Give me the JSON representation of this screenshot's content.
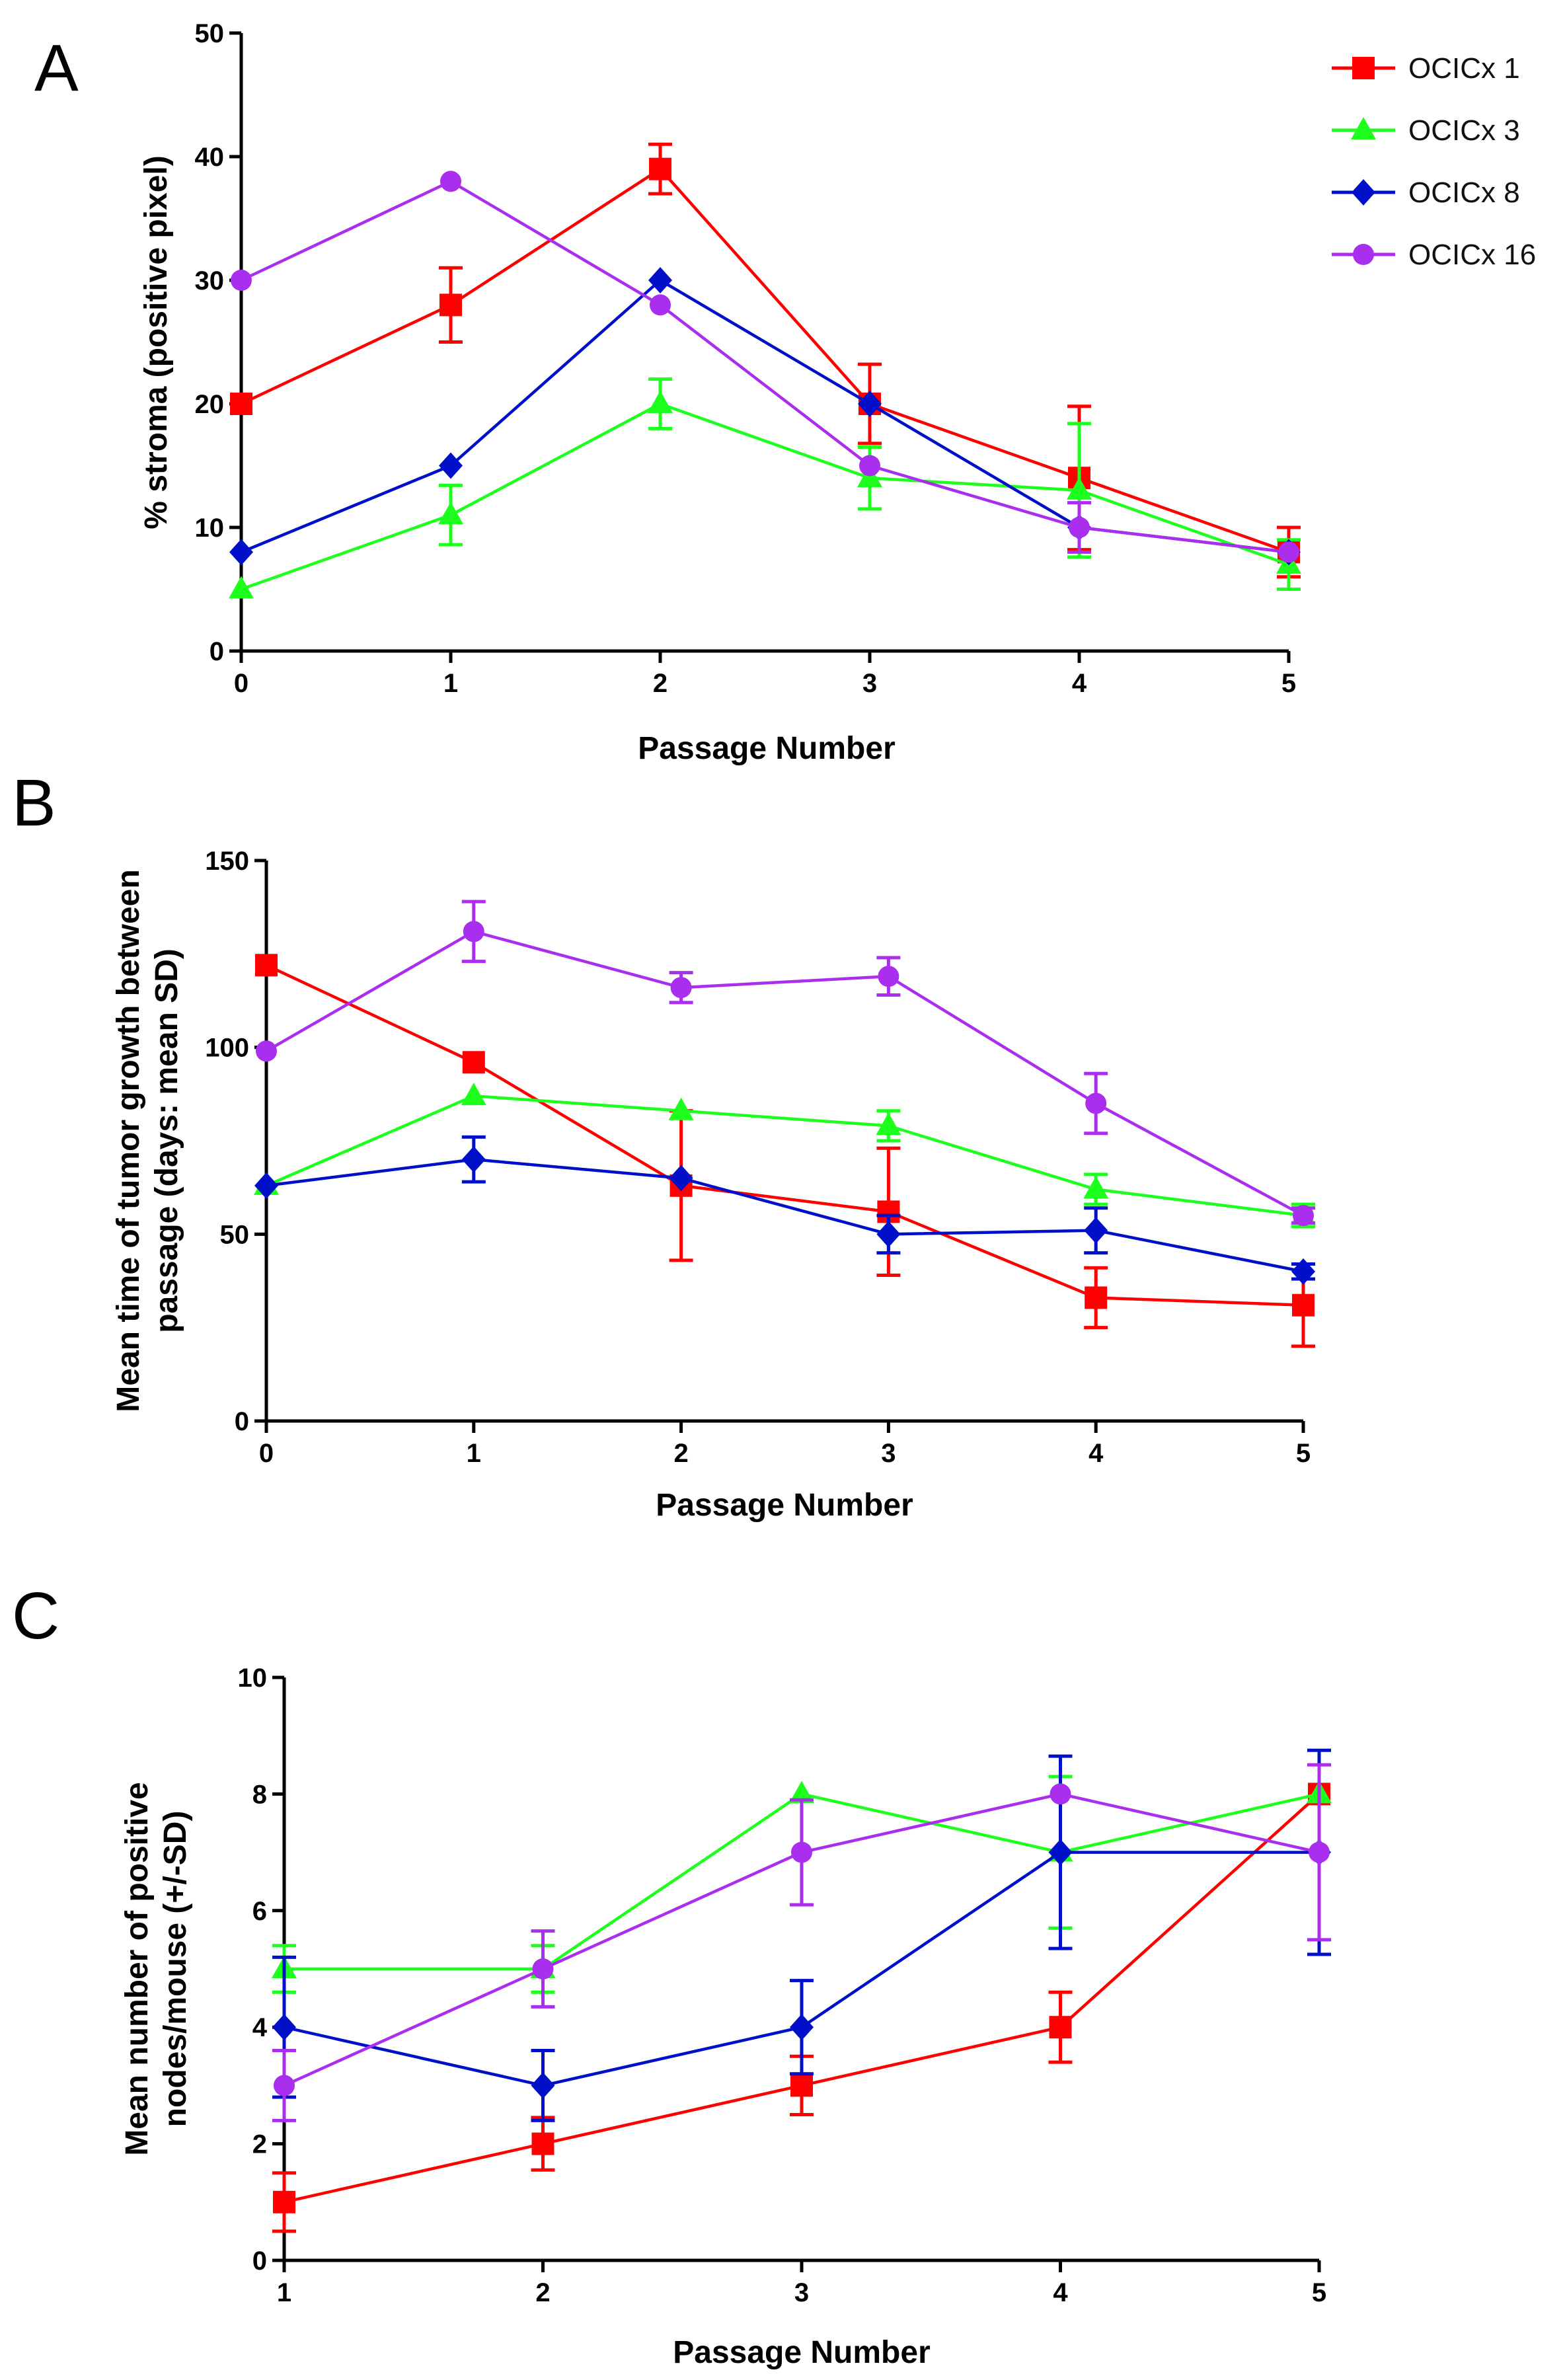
{
  "colors": {
    "OCICx 1": "#ff0000",
    "OCICx 3": "#1dff1d",
    "OCICx 8": "#0010c8",
    "OCICx 16": "#aa2eee"
  },
  "legend": [
    "OCICx 1",
    "OCICx 3",
    "OCICx 8",
    "OCICx 16"
  ],
  "chart_data": [
    {
      "panel": "A",
      "type": "line",
      "xlabel": "Passage Number",
      "ylabel": "% stroma (positive pixel)",
      "x": [
        0,
        1,
        2,
        3,
        4,
        5
      ],
      "xlim": [
        0,
        5
      ],
      "ylim": [
        0,
        50
      ],
      "yticks": [
        0,
        10,
        20,
        30,
        40,
        50
      ],
      "series": [
        {
          "name": "OCICx 1",
          "marker": "square",
          "values": [
            20,
            28,
            39,
            20,
            14,
            8
          ],
          "err": [
            0,
            3,
            2,
            3.2,
            5.8,
            2
          ]
        },
        {
          "name": "OCICx 3",
          "marker": "triangle",
          "values": [
            5,
            11,
            20,
            14,
            13,
            7
          ],
          "err": [
            0,
            2.4,
            2,
            2.5,
            5.4,
            2
          ]
        },
        {
          "name": "OCICx 8",
          "marker": "diamond",
          "values": [
            8,
            15,
            30,
            20,
            10,
            8
          ],
          "err": [
            0,
            0,
            0,
            0,
            0,
            0
          ]
        },
        {
          "name": "OCICx 16",
          "marker": "circle",
          "values": [
            30,
            38,
            28,
            15,
            10,
            8
          ],
          "err": [
            0,
            0,
            0,
            0,
            2,
            0
          ]
        }
      ]
    },
    {
      "panel": "B",
      "type": "line",
      "xlabel": "Passage Number",
      "ylabel": "Mean time of tumor growth between passage (days: mean SD)",
      "ylabel_lines": [
        "Mean time of tumor growth between",
        "passage (days: mean SD)"
      ],
      "x": [
        0,
        1,
        2,
        3,
        4,
        5
      ],
      "xlim": [
        0,
        5
      ],
      "ylim": [
        0,
        150
      ],
      "yticks": [
        0,
        50,
        100,
        150
      ],
      "series": [
        {
          "name": "OCICx 1",
          "marker": "square",
          "values": [
            122,
            96,
            63,
            56,
            33,
            31
          ],
          "err": [
            0,
            0,
            20,
            17,
            8,
            11
          ]
        },
        {
          "name": "OCICx 3",
          "marker": "triangle",
          "values": [
            63,
            87,
            83,
            79,
            62,
            55
          ],
          "err": [
            0,
            0,
            0,
            4,
            4,
            3
          ]
        },
        {
          "name": "OCICx 8",
          "marker": "diamond",
          "values": [
            63,
            70,
            65,
            50,
            51,
            40
          ],
          "err": [
            0,
            6,
            0,
            5,
            6,
            2
          ]
        },
        {
          "name": "OCICx 16",
          "marker": "circle",
          "values": [
            99,
            131,
            116,
            119,
            85,
            55
          ],
          "err": [
            0,
            8,
            4,
            5,
            8,
            2
          ]
        }
      ]
    },
    {
      "panel": "C",
      "type": "line",
      "xlabel": "Passage Number",
      "ylabel": "Mean number of positive nodes/mouse (+/-SD)",
      "ylabel_lines": [
        "Mean number of positive",
        "nodes/mouse (+/-SD)"
      ],
      "x": [
        1,
        2,
        3,
        4,
        5
      ],
      "xlim": [
        1,
        5
      ],
      "ylim": [
        0,
        10
      ],
      "yticks": [
        0,
        2,
        4,
        6,
        8,
        10
      ],
      "series": [
        {
          "name": "OCICx 1",
          "marker": "square",
          "values": [
            1,
            2,
            3,
            4,
            8
          ],
          "err": [
            0.5,
            0.45,
            0.5,
            0.6,
            0
          ]
        },
        {
          "name": "OCICx 3",
          "marker": "triangle",
          "values": [
            5,
            5,
            8,
            7,
            8
          ],
          "err": [
            0.4,
            0.4,
            0,
            1.3,
            0
          ]
        },
        {
          "name": "OCICx 8",
          "marker": "diamond",
          "values": [
            4,
            3,
            4,
            7,
            7
          ],
          "err": [
            1.2,
            0.6,
            0.8,
            1.65,
            1.75
          ]
        },
        {
          "name": "OCICx 16",
          "marker": "circle",
          "values": [
            3,
            5,
            7,
            8,
            7
          ],
          "err": [
            0.6,
            0.65,
            0.9,
            0,
            1.5
          ]
        }
      ]
    }
  ]
}
